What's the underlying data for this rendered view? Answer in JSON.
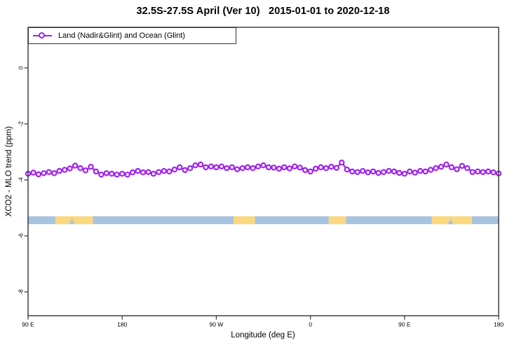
{
  "title": "32.5S-27.5S April (Ver 10)   2015-01-01 to 2020-12-18",
  "legend": {
    "label": "Land (Nadir&Glint) and Ocean (Glint)"
  },
  "colors": {
    "series_purple": "#A020F0",
    "ocean_blue": "#A8C3DF",
    "land_yellow": "#FBD87F",
    "axis_black": "#333333"
  },
  "chart_data": {
    "type": "line",
    "title": "32.5S-27.5S April (Ver 10)   2015-01-01 to 2020-12-18",
    "xlabel": "Longitude (deg E)",
    "ylabel": "XCO2 - MLO trend (ppm)",
    "legend_position": "top-left",
    "grid": false,
    "x_axis": {
      "range_deg": [
        90,
        540
      ],
      "tick_interval_deg": 90,
      "tick_positions_deg": [
        90,
        180,
        270,
        360,
        450,
        540
      ],
      "tick_labels": [
        "90 E",
        "180",
        "90 W",
        "0",
        "90 E",
        "180"
      ]
    },
    "y_axis": {
      "range_ppm": [
        -8.85,
        1.45
      ],
      "tick_positions": [
        0,
        -2,
        -4,
        -6,
        -8
      ],
      "tick_labels": [
        "0",
        "-2",
        "-4",
        "-6",
        "-8"
      ]
    },
    "series": [
      {
        "name": "Land (Nadir&Glint) and Ocean (Glint)",
        "color": "#A020F0",
        "marker": "open-circle",
        "x_deg": [
          90,
          95,
          100,
          105,
          110,
          115,
          120,
          125,
          130,
          135,
          140,
          145,
          150,
          155,
          160,
          165,
          170,
          175,
          180,
          185,
          190,
          195,
          200,
          205,
          210,
          215,
          220,
          225,
          230,
          235,
          240,
          245,
          250,
          255,
          260,
          265,
          270,
          275,
          280,
          285,
          290,
          295,
          300,
          305,
          310,
          315,
          320,
          325,
          330,
          335,
          340,
          345,
          350,
          355,
          360,
          365,
          370,
          375,
          380,
          385,
          390,
          395,
          400,
          405,
          410,
          415,
          420,
          425,
          430,
          435,
          440,
          445,
          450,
          455,
          460,
          465,
          470,
          475,
          480,
          485,
          490,
          495,
          500,
          505,
          510,
          515,
          520,
          525,
          530,
          535,
          540
        ],
        "y_ppm": [
          -3.78,
          -3.74,
          -3.8,
          -3.76,
          -3.72,
          -3.76,
          -3.68,
          -3.64,
          -3.59,
          -3.49,
          -3.58,
          -3.66,
          -3.53,
          -3.7,
          -3.81,
          -3.76,
          -3.78,
          -3.81,
          -3.78,
          -3.81,
          -3.73,
          -3.68,
          -3.73,
          -3.72,
          -3.78,
          -3.72,
          -3.68,
          -3.7,
          -3.63,
          -3.55,
          -3.65,
          -3.58,
          -3.48,
          -3.45,
          -3.55,
          -3.52,
          -3.55,
          -3.52,
          -3.58,
          -3.55,
          -3.62,
          -3.58,
          -3.55,
          -3.58,
          -3.52,
          -3.48,
          -3.55,
          -3.56,
          -3.6,
          -3.55,
          -3.59,
          -3.52,
          -3.56,
          -3.65,
          -3.7,
          -3.6,
          -3.55,
          -3.58,
          -3.53,
          -3.57,
          -3.38,
          -3.63,
          -3.7,
          -3.72,
          -3.68,
          -3.73,
          -3.7,
          -3.75,
          -3.72,
          -3.68,
          -3.7,
          -3.75,
          -3.78,
          -3.7,
          -3.74,
          -3.68,
          -3.7,
          -3.64,
          -3.58,
          -3.53,
          -3.45,
          -3.55,
          -3.62,
          -3.5,
          -3.58,
          -3.72,
          -3.7,
          -3.72,
          -3.7,
          -3.73,
          -3.77
        ]
      }
    ],
    "land_ocean_band": {
      "y_range_ppm": [
        -5.3,
        -5.58
      ],
      "ocean_color": "#A8C3DF",
      "land_color": "#FBD87F",
      "land_patches_deg": [
        [
          116,
          152
        ],
        [
          286.5,
          307
        ],
        [
          377.5,
          394
        ],
        [
          476,
          514.5
        ]
      ],
      "coast_notches_deg": [
        132,
        494
      ]
    }
  }
}
